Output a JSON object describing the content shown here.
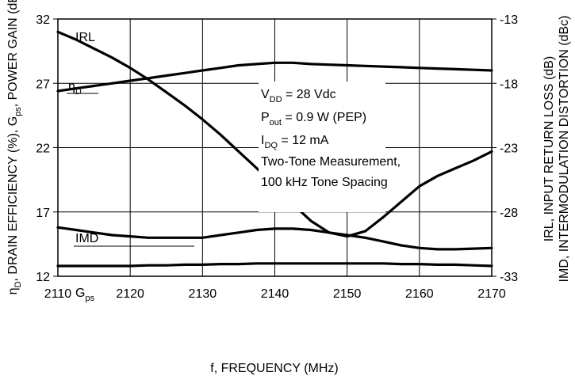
{
  "chart_data": {
    "type": "line",
    "x": [
      2110,
      2112.5,
      2115,
      2117.5,
      2120,
      2122.5,
      2125,
      2127.5,
      2130,
      2132.5,
      2135,
      2137.5,
      2140,
      2142.5,
      2145,
      2147.5,
      2150,
      2152.5,
      2155,
      2157.5,
      2160,
      2162.5,
      2165,
      2167.5,
      2170
    ],
    "xlabel": "f, FREQUENCY (MHz)",
    "xlim": [
      2110,
      2170
    ],
    "xticks": [
      "2110",
      "2120",
      "2130",
      "2140",
      "2150",
      "2160",
      "2170"
    ],
    "ylabel_left": {
      "pre": "η",
      "sub": "D",
      "post": ", DRAIN EFFICIENCY (%), G",
      "sub2": "ps",
      "post2": ", POWER GAIN (dB)"
    },
    "ylim_left": [
      12,
      32
    ],
    "yticks_left": [
      "12",
      "17",
      "22",
      "27",
      "32"
    ],
    "ylabel_right": [
      "IRL, INPUT RETURN LOSS (dB)",
      "IMD, INTERMODULATION DISTORTION (dBc)"
    ],
    "ylim_right": [
      -33,
      -13
    ],
    "yticks_right": [
      "-33",
      "-28",
      "-23",
      "-18",
      "-13"
    ],
    "grid": true,
    "series": [
      {
        "name": "IRL",
        "axis": "right",
        "values": [
          -14.0,
          -14.6,
          -15.3,
          -16.0,
          -16.8,
          -17.7,
          -18.7,
          -19.7,
          -20.8,
          -22.0,
          -23.3,
          -24.6,
          -26.0,
          -27.4,
          -28.7,
          -29.6,
          -29.9,
          -29.5,
          -28.4,
          -27.2,
          -26.0,
          -25.2,
          -24.6,
          -24.0,
          -23.3
        ]
      },
      {
        "name": "ηD",
        "axis": "left",
        "values": [
          26.4,
          26.6,
          26.8,
          27.0,
          27.2,
          27.4,
          27.6,
          27.8,
          28.0,
          28.2,
          28.4,
          28.5,
          28.6,
          28.6,
          28.5,
          28.45,
          28.4,
          28.35,
          28.3,
          28.25,
          28.2,
          28.15,
          28.1,
          28.05,
          28.0
        ]
      },
      {
        "name": "IMD",
        "axis": "right",
        "values": [
          -29.2,
          -29.4,
          -29.6,
          -29.8,
          -29.9,
          -30.0,
          -30.0,
          -30.0,
          -30.0,
          -29.8,
          -29.6,
          -29.4,
          -29.3,
          -29.3,
          -29.4,
          -29.6,
          -29.8,
          -30.0,
          -30.3,
          -30.6,
          -30.8,
          -30.9,
          -30.9,
          -30.85,
          -30.8
        ]
      },
      {
        "name": "Gps",
        "axis": "left",
        "values": [
          12.8,
          12.8,
          12.8,
          12.8,
          12.8,
          12.85,
          12.85,
          12.9,
          12.9,
          12.95,
          12.95,
          13.0,
          13.0,
          13.0,
          13.0,
          13.0,
          13.0,
          13.0,
          13.0,
          12.95,
          12.95,
          12.9,
          12.9,
          12.85,
          12.8
        ]
      }
    ],
    "curve_labels": {
      "irl": "IRL",
      "eta_main": "η",
      "eta_sub": "D",
      "imd": "IMD",
      "gps_main": "G",
      "gps_sub": "ps"
    },
    "annotation": {
      "vdd_main": "V",
      "vdd_sub": "DD",
      "vdd_rest": " = 28 Vdc",
      "pout_main": "P",
      "pout_sub": "out",
      "pout_rest": " = 0.9 W (PEP)",
      "idq_main": "I",
      "idq_sub": "DQ",
      "idq_rest": " = 12 mA",
      "line4": "Two-Tone Measurement,",
      "line5": "100 kHz Tone Spacing"
    },
    "colors": {
      "line": "#000000",
      "grid": "#000000",
      "background": "#ffffff"
    }
  }
}
